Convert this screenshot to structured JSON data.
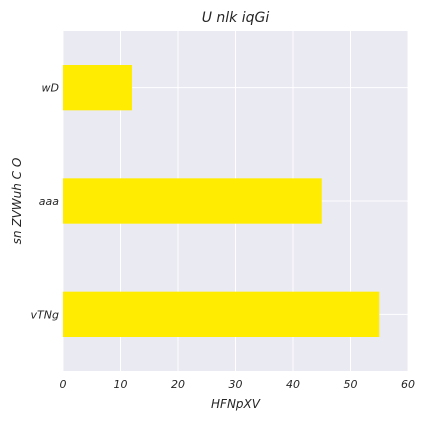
{
  "chart_data": {
    "type": "bar",
    "orientation": "horizontal",
    "title": "U nlk iqGi",
    "xlabel": "HFNpXV",
    "ylabel": "sn ZVWuh C O",
    "categories": [
      "wD",
      "aaa",
      "vTNg"
    ],
    "values": [
      12,
      45,
      55
    ],
    "xlim": [
      0,
      60
    ],
    "xticks": [
      0,
      10,
      20,
      30,
      40,
      50,
      60
    ],
    "grid": true,
    "legend": "none",
    "colors": {
      "bar": "#ffec00",
      "plot_background": "#eaeaf2",
      "grid": "#ffffff",
      "text": "#262626"
    }
  }
}
